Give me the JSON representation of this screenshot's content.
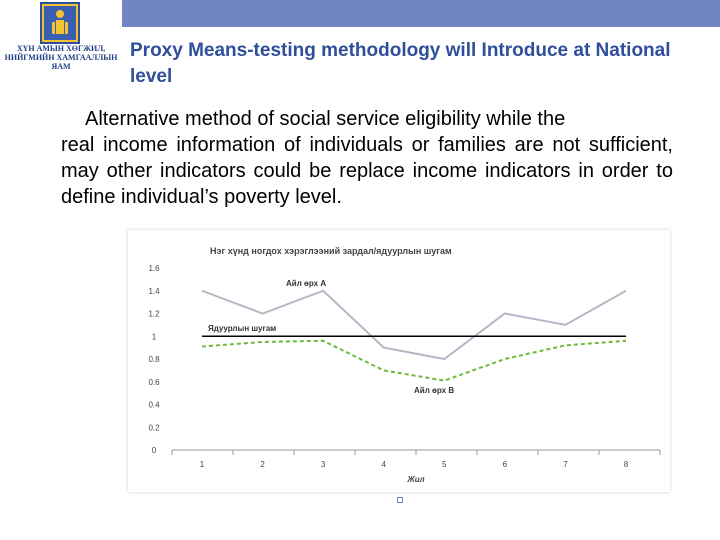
{
  "header": {
    "logo_caption_line1": "ХҮН АМЫН ХӨГЖИЛ,",
    "logo_caption_line2": "НИЙГМИЙН ХАМГААЛЛЫН ЯАМ",
    "title": "Proxy Means-testing methodology will  Introduce at National level",
    "accent_color": "#6f86c1",
    "title_color": "#2f4f9a"
  },
  "body": {
    "line1": "Alternative method of social service eligibility  while the",
    "line2": "real income information of individuals or families are  not sufficient, may other indicators could be replace income indicators in order to define individual’s poverty level."
  },
  "chart_data": {
    "type": "line",
    "title": "Нэг хүнд ногдох хэрэглээний зардал/ядуурлын шугам",
    "xlabel": "Жил",
    "ylabel": "",
    "categories": [
      "1",
      "2",
      "3",
      "4",
      "5",
      "6",
      "7",
      "8"
    ],
    "ylim": [
      0,
      1.6
    ],
    "yticks": [
      "0",
      "0.2",
      "0.4",
      "0.6",
      "0.8",
      "1",
      "1.2",
      "1.4",
      "1.6"
    ],
    "series": [
      {
        "name": "Айл өрх А",
        "style": "solid",
        "color": "#b4b7c6",
        "values": [
          1.4,
          1.2,
          1.4,
          0.9,
          0.8,
          1.2,
          1.1,
          1.4
        ]
      },
      {
        "name": "Ядуурлын шугам",
        "style": "solid",
        "color": "#000000",
        "values": [
          1.0,
          1.0,
          1.0,
          1.0,
          1.0,
          1.0,
          1.0,
          1.0
        ]
      },
      {
        "name": "Айл өрх В",
        "style": "dashed",
        "color": "#6fb83a",
        "values": [
          0.91,
          0.95,
          0.96,
          0.7,
          0.61,
          0.8,
          0.92,
          0.96
        ]
      }
    ]
  }
}
